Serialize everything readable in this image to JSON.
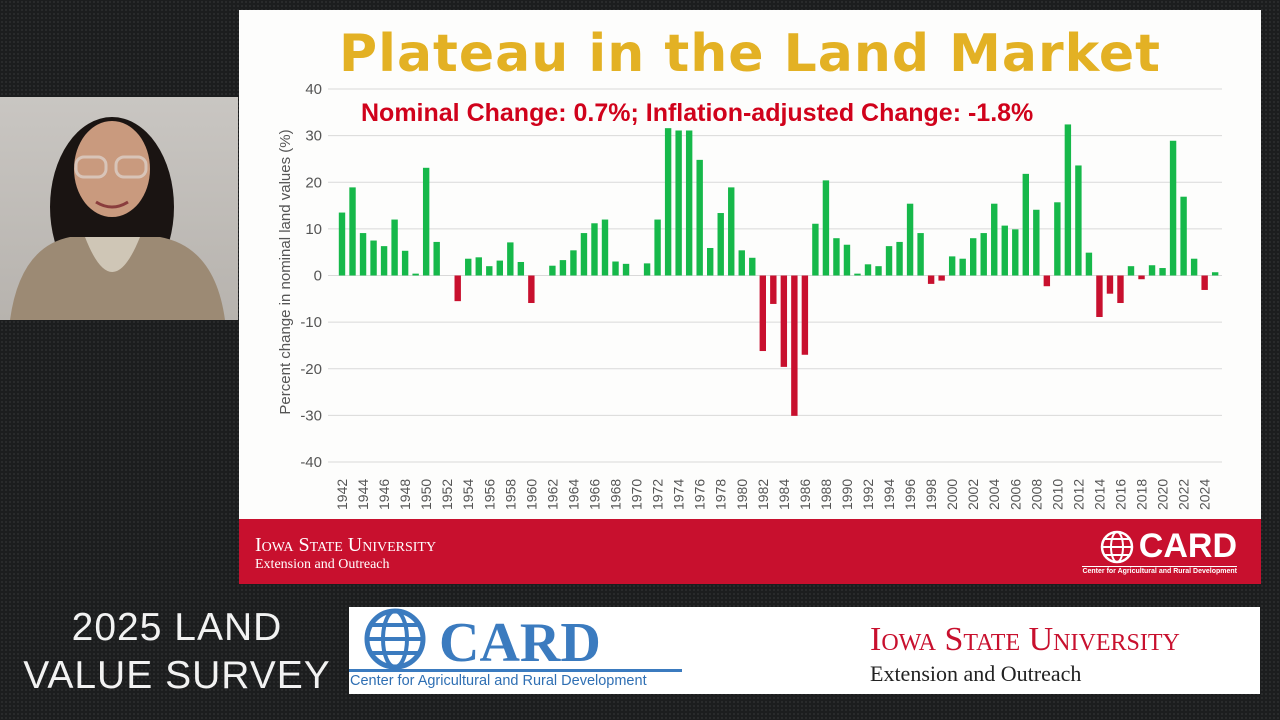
{
  "slide": {
    "title": "Plateau in the Land Market",
    "subtitle": "Nominal Change: 0.7%; Inflation-adjusted Change: -1.8%",
    "banner_isu_name": "Iowa State University",
    "banner_isu_sub": "Extension and Outreach",
    "banner_card_name": "CARD",
    "banner_card_sub": "Center for Agricultural and Rural Development"
  },
  "overlay": {
    "survey_line1": "2025 LAND",
    "survey_line2": "VALUE SURVEY",
    "card_name": "CARD",
    "card_sub": "Center for Agricultural and Rural Development",
    "isu_name": "Iowa State University",
    "isu_sub": "Extension and Outreach"
  },
  "colors": {
    "positive": "#16b84a",
    "negative": "#c8102e",
    "title": "#e3b124",
    "subtitle": "#d0021b"
  },
  "chart_data": {
    "type": "bar",
    "title": "Plateau in the Land Market",
    "annotation": "Nominal Change: 0.7%; Inflation-adjusted Change: -1.8%",
    "xlabel": "",
    "ylabel": "Percent change in nominal land values (%)",
    "ylim": [
      -40,
      40
    ],
    "yticks": [
      40,
      30,
      20,
      10,
      0,
      -10,
      -20,
      -30,
      -40
    ],
    "grid": true,
    "x_start": 1942,
    "x_tick_labels": [
      "1942",
      "1944",
      "1946",
      "1948",
      "1950",
      "1952",
      "1954",
      "1956",
      "1958",
      "1960",
      "1962",
      "1964",
      "1966",
      "1968",
      "1970",
      "1972",
      "1974",
      "1976",
      "1978",
      "1980",
      "1982",
      "1984",
      "1986",
      "1988",
      "1990",
      "1992",
      "1994",
      "1996",
      "1998",
      "2000",
      "2002",
      "2004",
      "2006",
      "2008",
      "2010",
      "2012",
      "2014",
      "2016",
      "2018",
      "2020",
      "2022",
      "2024"
    ],
    "values": [
      13.5,
      18.9,
      9.1,
      7.5,
      6.3,
      12.0,
      5.3,
      0.4,
      23.1,
      7.2,
      0,
      -5.5,
      3.6,
      3.9,
      2.0,
      3.2,
      7.1,
      2.9,
      -5.9,
      0,
      2.1,
      3.3,
      5.4,
      9.1,
      11.2,
      12.0,
      3.0,
      2.5,
      0,
      2.6,
      12.0,
      31.6,
      31.1,
      31.1,
      24.8,
      5.9,
      13.4,
      18.9,
      5.4,
      3.8,
      -16.2,
      -6.1,
      -19.6,
      -30.1,
      -17.0,
      11.1,
      20.4,
      8.0,
      6.6,
      0.4,
      2.4,
      2.0,
      6.3,
      7.2,
      15.4,
      9.1,
      -1.8,
      -1.1,
      4.1,
      3.6,
      8.0,
      9.1,
      15.4,
      10.7,
      9.9,
      21.8,
      14.1,
      -2.3,
      15.7,
      32.4,
      23.6,
      4.9,
      -8.9,
      -3.9,
      -5.9,
      2.0,
      -0.8,
      2.2,
      1.6,
      28.9,
      16.9,
      3.6,
      -3.1,
      0.7
    ]
  }
}
